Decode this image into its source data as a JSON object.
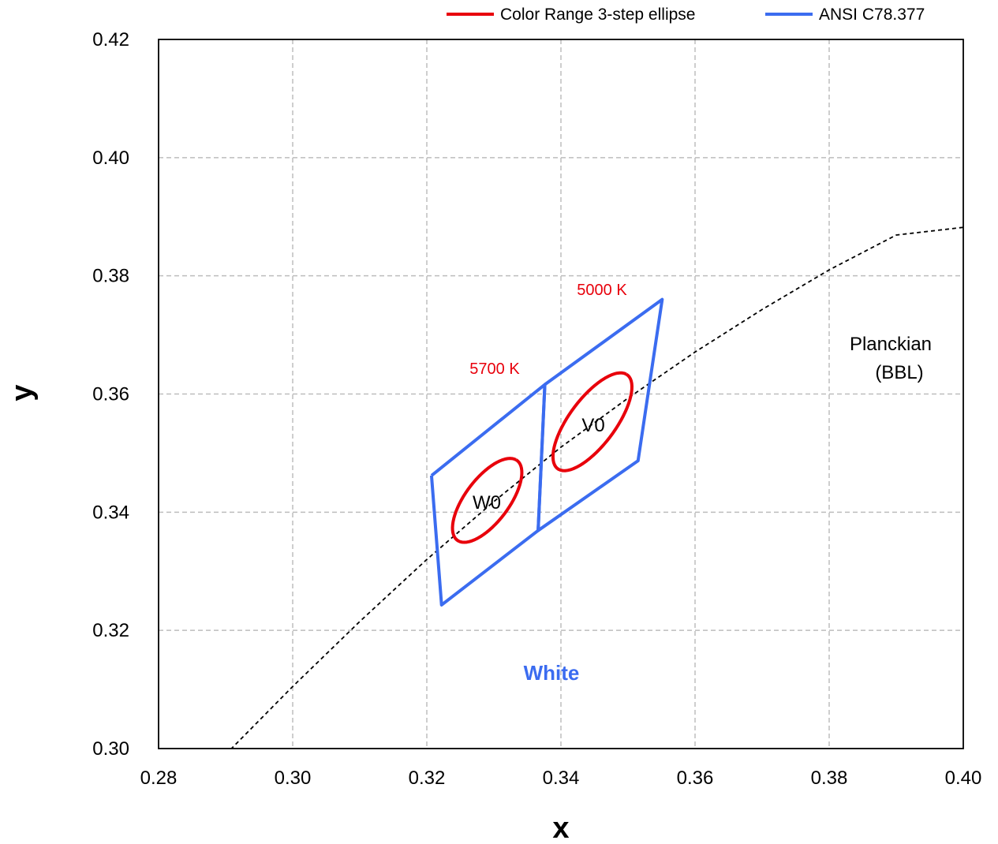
{
  "chart_data": {
    "type": "scatter",
    "xlabel": "x",
    "ylabel": "y",
    "xlim": [
      0.28,
      0.4
    ],
    "ylim": [
      0.3,
      0.42
    ],
    "xticks": [
      "0.28",
      "0.30",
      "0.32",
      "0.34",
      "0.36",
      "0.38",
      "0.40"
    ],
    "yticks": [
      "0.30",
      "0.32",
      "0.34",
      "0.36",
      "0.38",
      "0.40",
      "0.42"
    ],
    "x_tick_values": [
      0.28,
      0.3,
      0.32,
      0.34,
      0.36,
      0.38,
      0.4
    ],
    "y_tick_values": [
      0.3,
      0.32,
      0.34,
      0.36,
      0.38,
      0.4,
      0.42
    ],
    "grid": true,
    "legend_position": "top-right",
    "legend": [
      {
        "label": "Color Range 3-step ellipse",
        "color": "#e8000b"
      },
      {
        "label": "ANSI C78.377",
        "color": "#3b6cf0"
      }
    ],
    "series": [
      {
        "name": "ANSI C78.377",
        "kind": "quadrangles",
        "color": "#3b6cf0",
        "shapes": [
          {
            "x": [
              0.3207,
              0.3376,
              0.3366,
              0.3222,
              0.3207
            ],
            "y": [
              0.3462,
              0.3616,
              0.3369,
              0.3243,
              0.3462
            ]
          },
          {
            "x": [
              0.3376,
              0.3551,
              0.3515,
              0.3366,
              0.3376
            ],
            "y": [
              0.3616,
              0.376,
              0.3487,
              0.3369,
              0.3616
            ]
          }
        ]
      },
      {
        "name": "Color Range 3-step ellipse",
        "kind": "ellipses",
        "color": "#e8000b",
        "ellipses": [
          {
            "label": "W0",
            "center": [
              0.329,
              0.342
            ],
            "a": 0.0081,
            "b": 0.0034,
            "angle_deg": 58
          },
          {
            "label": "V0",
            "center": [
              0.3447,
              0.3553
            ],
            "a": 0.0095,
            "b": 0.0036,
            "angle_deg": 58
          }
        ]
      },
      {
        "name": "Planckian (BBL)",
        "kind": "curve",
        "color": "#000000",
        "dashed": true,
        "x": [
          0.29,
          0.3,
          0.31,
          0.32,
          0.33,
          0.34,
          0.35,
          0.36,
          0.37,
          0.38,
          0.39,
          0.4
        ],
        "y": [
          0.299,
          0.3105,
          0.3215,
          0.332,
          0.3418,
          0.351,
          0.3593,
          0.3671,
          0.3743,
          0.381,
          0.3869,
          0.3882
        ]
      }
    ],
    "annotations": {
      "cct_5000": "5000 K",
      "cct_5700": "5700 K",
      "label_w0": "W0",
      "label_v0": "V0",
      "bbl_line1": "Planckian",
      "bbl_line2": "(BBL)",
      "region": "White"
    }
  }
}
